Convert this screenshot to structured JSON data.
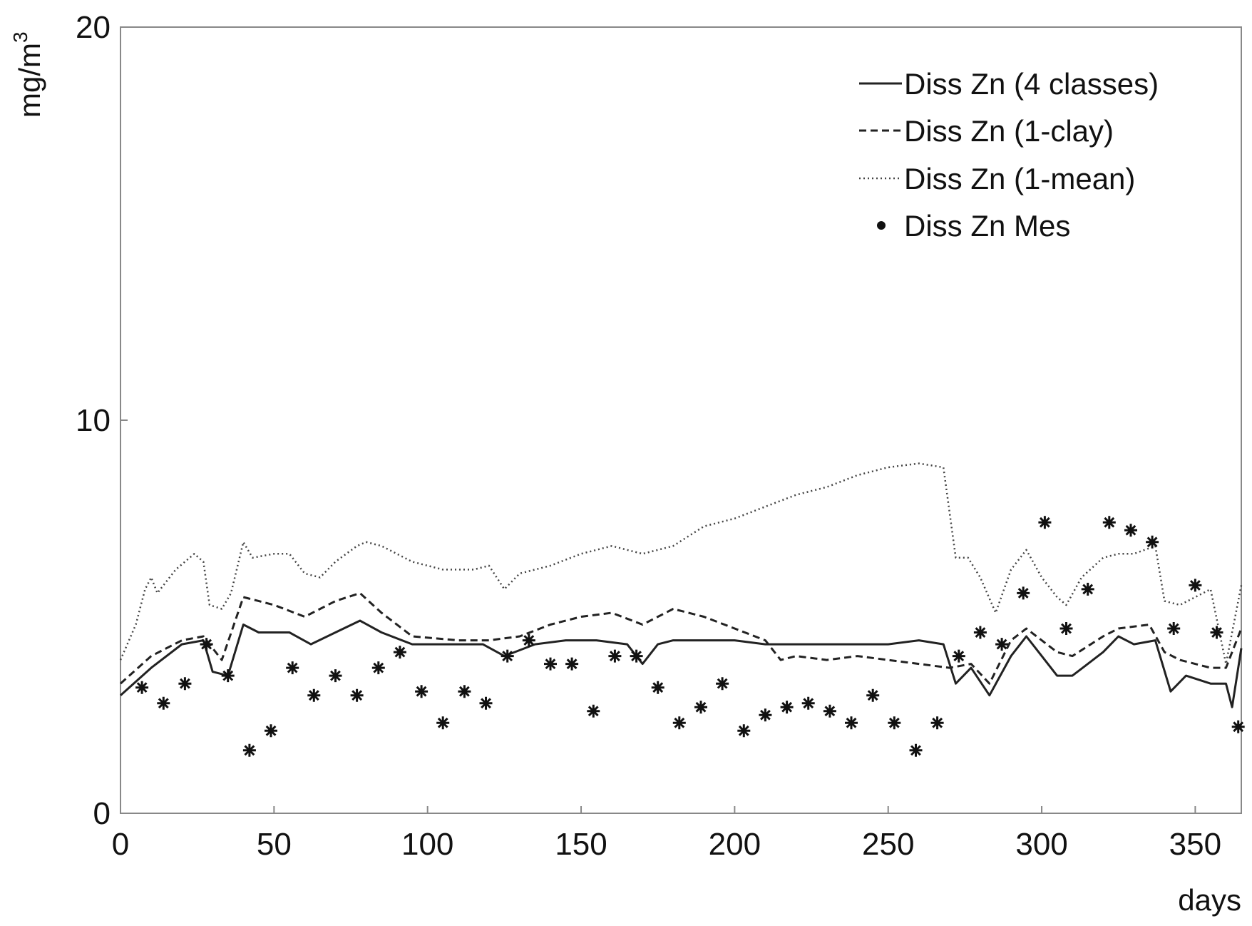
{
  "chart_data": {
    "type": "line",
    "title": "",
    "xlabel": "days",
    "ylabel": "mg/m",
    "ylabel_superscript": "3",
    "xlim": [
      0,
      365
    ],
    "ylim": [
      0,
      20
    ],
    "x_ticks": [
      0,
      50,
      100,
      150,
      200,
      250,
      300,
      350
    ],
    "y_ticks": [
      0,
      10,
      20
    ],
    "grid": false,
    "legend": "top-right",
    "colors": {
      "lines": "#222222",
      "axes": "#888888",
      "markers": "#111111"
    },
    "series": [
      {
        "name": "Diss Zn (4 classes)",
        "style": "solid",
        "points": [
          [
            0,
            3.0
          ],
          [
            10,
            3.7
          ],
          [
            20,
            4.3
          ],
          [
            27,
            4.4
          ],
          [
            30,
            3.6
          ],
          [
            35,
            3.5
          ],
          [
            40,
            4.8
          ],
          [
            45,
            4.6
          ],
          [
            55,
            4.6
          ],
          [
            62,
            4.3
          ],
          [
            70,
            4.6
          ],
          [
            78,
            4.9
          ],
          [
            85,
            4.6
          ],
          [
            95,
            4.3
          ],
          [
            110,
            4.3
          ],
          [
            118,
            4.3
          ],
          [
            125,
            4.0
          ],
          [
            135,
            4.3
          ],
          [
            145,
            4.4
          ],
          [
            155,
            4.4
          ],
          [
            165,
            4.3
          ],
          [
            170,
            3.8
          ],
          [
            175,
            4.3
          ],
          [
            180,
            4.4
          ],
          [
            190,
            4.4
          ],
          [
            200,
            4.4
          ],
          [
            210,
            4.3
          ],
          [
            220,
            4.3
          ],
          [
            230,
            4.3
          ],
          [
            240,
            4.3
          ],
          [
            250,
            4.3
          ],
          [
            260,
            4.4
          ],
          [
            268,
            4.3
          ],
          [
            272,
            3.3
          ],
          [
            277,
            3.7
          ],
          [
            283,
            3.0
          ],
          [
            290,
            4.0
          ],
          [
            295,
            4.5
          ],
          [
            300,
            4.0
          ],
          [
            305,
            3.5
          ],
          [
            310,
            3.5
          ],
          [
            320,
            4.1
          ],
          [
            325,
            4.5
          ],
          [
            330,
            4.3
          ],
          [
            337,
            4.4
          ],
          [
            342,
            3.1
          ],
          [
            347,
            3.5
          ],
          [
            355,
            3.3
          ],
          [
            360,
            3.3
          ],
          [
            362,
            2.7
          ],
          [
            365,
            4.2
          ]
        ]
      },
      {
        "name": "Diss Zn (1-clay)",
        "style": "dashed",
        "points": [
          [
            0,
            3.3
          ],
          [
            10,
            4.0
          ],
          [
            20,
            4.4
          ],
          [
            27,
            4.5
          ],
          [
            33,
            3.9
          ],
          [
            40,
            5.5
          ],
          [
            50,
            5.3
          ],
          [
            60,
            5.0
          ],
          [
            70,
            5.4
          ],
          [
            78,
            5.6
          ],
          [
            85,
            5.1
          ],
          [
            95,
            4.5
          ],
          [
            110,
            4.4
          ],
          [
            120,
            4.4
          ],
          [
            130,
            4.5
          ],
          [
            140,
            4.8
          ],
          [
            150,
            5.0
          ],
          [
            160,
            5.1
          ],
          [
            170,
            4.8
          ],
          [
            175,
            5.0
          ],
          [
            180,
            5.2
          ],
          [
            190,
            5.0
          ],
          [
            200,
            4.7
          ],
          [
            210,
            4.4
          ],
          [
            215,
            3.9
          ],
          [
            220,
            4.0
          ],
          [
            230,
            3.9
          ],
          [
            240,
            4.0
          ],
          [
            250,
            3.9
          ],
          [
            260,
            3.8
          ],
          [
            270,
            3.7
          ],
          [
            277,
            3.8
          ],
          [
            283,
            3.3
          ],
          [
            290,
            4.4
          ],
          [
            295,
            4.7
          ],
          [
            300,
            4.4
          ],
          [
            305,
            4.1
          ],
          [
            310,
            4.0
          ],
          [
            320,
            4.5
          ],
          [
            325,
            4.7
          ],
          [
            335,
            4.8
          ],
          [
            340,
            4.1
          ],
          [
            345,
            3.9
          ],
          [
            355,
            3.7
          ],
          [
            360,
            3.7
          ],
          [
            365,
            4.7
          ]
        ]
      },
      {
        "name": "Diss Zn (1-mean)",
        "style": "dotted",
        "points": [
          [
            0,
            3.9
          ],
          [
            5,
            4.8
          ],
          [
            8,
            5.7
          ],
          [
            10,
            6.0
          ],
          [
            12,
            5.6
          ],
          [
            18,
            6.2
          ],
          [
            24,
            6.6
          ],
          [
            27,
            6.4
          ],
          [
            29,
            5.3
          ],
          [
            33,
            5.2
          ],
          [
            36,
            5.6
          ],
          [
            40,
            6.9
          ],
          [
            43,
            6.5
          ],
          [
            50,
            6.6
          ],
          [
            55,
            6.6
          ],
          [
            60,
            6.1
          ],
          [
            65,
            6.0
          ],
          [
            70,
            6.4
          ],
          [
            77,
            6.8
          ],
          [
            80,
            6.9
          ],
          [
            85,
            6.8
          ],
          [
            95,
            6.4
          ],
          [
            105,
            6.2
          ],
          [
            115,
            6.2
          ],
          [
            120,
            6.3
          ],
          [
            125,
            5.7
          ],
          [
            130,
            6.1
          ],
          [
            140,
            6.3
          ],
          [
            150,
            6.6
          ],
          [
            160,
            6.8
          ],
          [
            170,
            6.6
          ],
          [
            180,
            6.8
          ],
          [
            190,
            7.3
          ],
          [
            200,
            7.5
          ],
          [
            210,
            7.8
          ],
          [
            220,
            8.1
          ],
          [
            230,
            8.3
          ],
          [
            240,
            8.6
          ],
          [
            250,
            8.8
          ],
          [
            260,
            8.9
          ],
          [
            268,
            8.8
          ],
          [
            272,
            6.5
          ],
          [
            276,
            6.5
          ],
          [
            280,
            6.0
          ],
          [
            285,
            5.1
          ],
          [
            290,
            6.2
          ],
          [
            295,
            6.7
          ],
          [
            300,
            6.0
          ],
          [
            305,
            5.5
          ],
          [
            308,
            5.3
          ],
          [
            313,
            6.0
          ],
          [
            320,
            6.5
          ],
          [
            325,
            6.6
          ],
          [
            330,
            6.6
          ],
          [
            337,
            6.8
          ],
          [
            340,
            5.4
          ],
          [
            345,
            5.3
          ],
          [
            350,
            5.5
          ],
          [
            355,
            5.7
          ],
          [
            360,
            3.8
          ],
          [
            365,
            5.8
          ]
        ]
      }
    ],
    "scatter": {
      "name": "Diss Zn Mes",
      "marker": "asterisk",
      "points": [
        [
          7,
          3.2
        ],
        [
          14,
          2.8
        ],
        [
          21,
          3.3
        ],
        [
          28,
          4.3
        ],
        [
          35,
          3.5
        ],
        [
          42,
          1.6
        ],
        [
          49,
          2.1
        ],
        [
          56,
          3.7
        ],
        [
          63,
          3.0
        ],
        [
          70,
          3.5
        ],
        [
          77,
          3.0
        ],
        [
          84,
          3.7
        ],
        [
          91,
          4.1
        ],
        [
          98,
          3.1
        ],
        [
          105,
          2.3
        ],
        [
          112,
          3.1
        ],
        [
          119,
          2.8
        ],
        [
          126,
          4.0
        ],
        [
          133,
          4.4
        ],
        [
          140,
          3.8
        ],
        [
          147,
          3.8
        ],
        [
          154,
          2.6
        ],
        [
          161,
          4.0
        ],
        [
          168,
          4.0
        ],
        [
          175,
          3.2
        ],
        [
          182,
          2.3
        ],
        [
          189,
          2.7
        ],
        [
          196,
          3.3
        ],
        [
          203,
          2.1
        ],
        [
          210,
          2.5
        ],
        [
          217,
          2.7
        ],
        [
          224,
          2.8
        ],
        [
          231,
          2.6
        ],
        [
          238,
          2.3
        ],
        [
          245,
          3.0
        ],
        [
          252,
          2.3
        ],
        [
          259,
          1.6
        ],
        [
          266,
          2.3
        ],
        [
          273,
          4.0
        ],
        [
          280,
          4.6
        ],
        [
          287,
          4.3
        ],
        [
          294,
          5.6
        ],
        [
          301,
          7.4
        ],
        [
          308,
          4.7
        ],
        [
          315,
          5.7
        ],
        [
          322,
          7.4
        ],
        [
          329,
          7.2
        ],
        [
          336,
          6.9
        ],
        [
          343,
          4.7
        ],
        [
          350,
          5.8
        ],
        [
          357,
          4.6
        ],
        [
          364,
          2.2
        ]
      ]
    }
  }
}
